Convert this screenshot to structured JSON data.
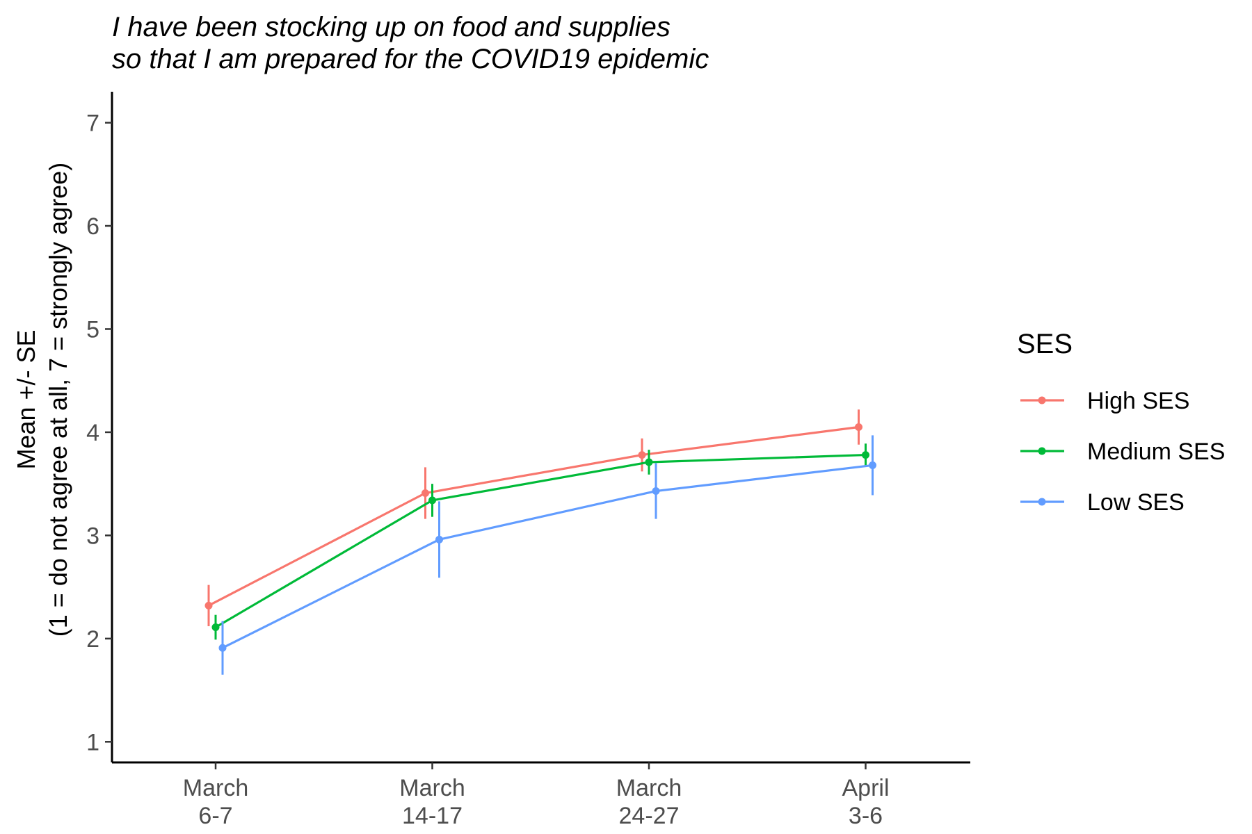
{
  "chart_data": {
    "type": "line",
    "title_lines": [
      "I have been stocking up on food and supplies",
      "so that I am prepared for the COVID19 epidemic"
    ],
    "xlabel": "",
    "ylabel_lines": [
      "Mean +/- SE",
      "(1 = do not agree at all, 7 = strongly agree)"
    ],
    "categories": [
      [
        "March",
        "6-7"
      ],
      [
        "March",
        "14-17"
      ],
      [
        "March",
        "24-27"
      ],
      [
        "April",
        "3-6"
      ]
    ],
    "ylim": [
      0.8,
      7.3
    ],
    "yticks": [
      1,
      2,
      3,
      4,
      5,
      6,
      7
    ],
    "grid": false,
    "error_bars": "mean +/- SE",
    "legend": {
      "title": "SES",
      "placement": "right"
    },
    "series": [
      {
        "name": "High SES",
        "color": "#F8766D",
        "dodge": -1,
        "values": [
          2.32,
          3.41,
          3.78,
          4.05
        ],
        "lower": [
          2.12,
          3.16,
          3.62,
          3.88
        ],
        "upper": [
          2.52,
          3.66,
          3.94,
          4.22
        ]
      },
      {
        "name": "Medium SES",
        "color": "#00BA38",
        "dodge": 0,
        "values": [
          2.11,
          3.34,
          3.71,
          3.78
        ],
        "lower": [
          1.99,
          3.18,
          3.59,
          3.67
        ],
        "upper": [
          2.23,
          3.5,
          3.83,
          3.89
        ]
      },
      {
        "name": "Low SES",
        "color": "#619CFF",
        "dodge": 1,
        "values": [
          1.91,
          2.96,
          3.43,
          3.68
        ],
        "lower": [
          1.65,
          2.59,
          3.16,
          3.39
        ],
        "upper": [
          2.17,
          3.33,
          3.7,
          3.97
        ]
      }
    ]
  }
}
